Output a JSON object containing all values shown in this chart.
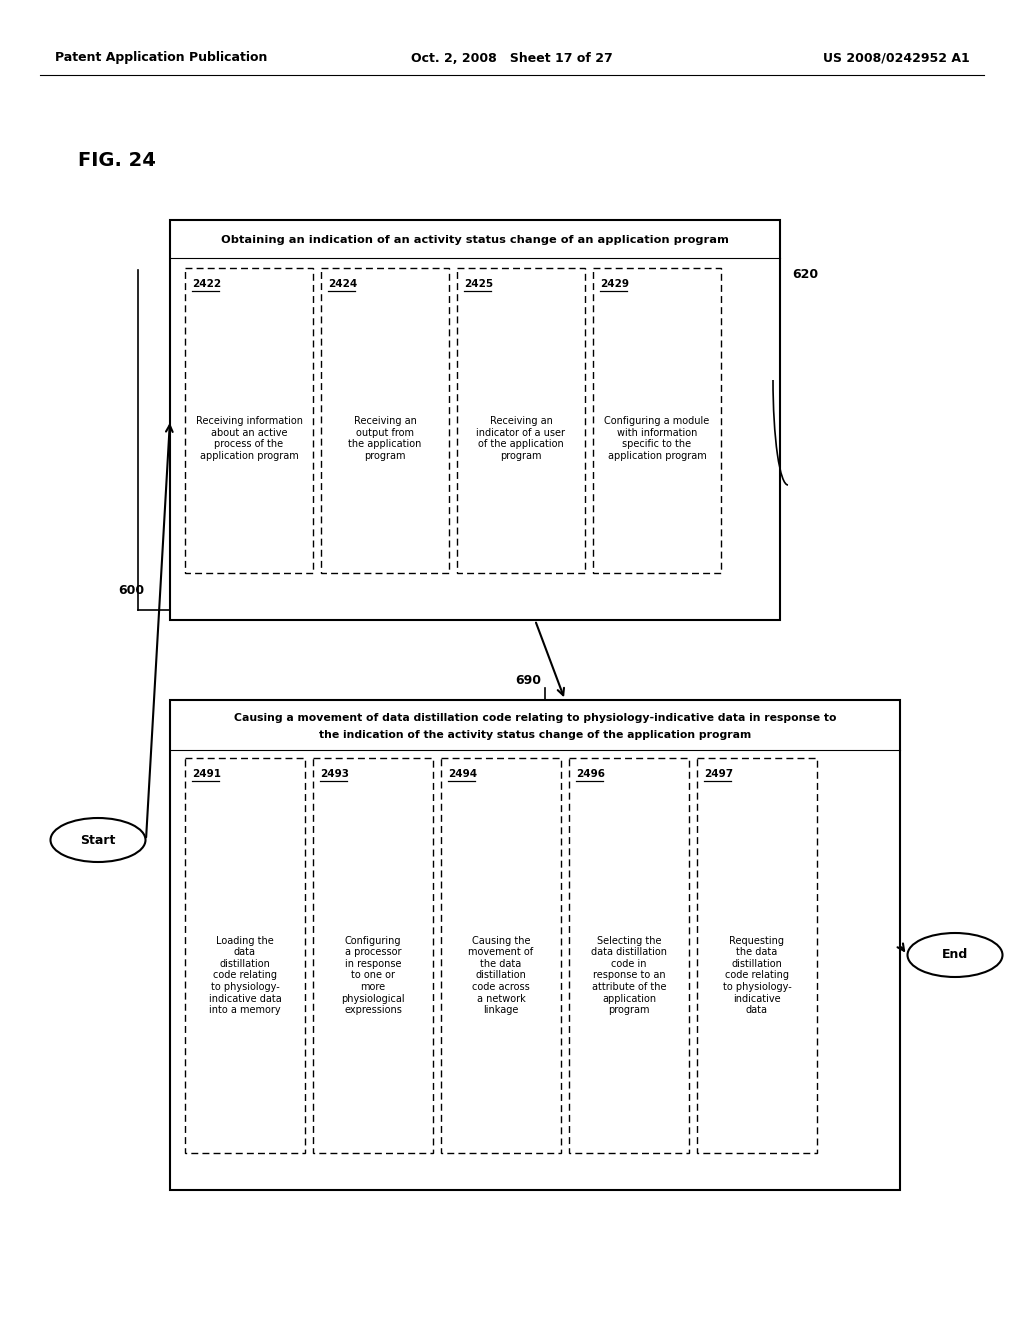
{
  "header_left": "Patent Application Publication",
  "header_center": "Oct. 2, 2008   Sheet 17 of 27",
  "header_right": "US 2008/0242952 A1",
  "fig_label": "FIG. 24",
  "bg_color": "#ffffff",
  "text_color": "#000000",
  "outer_box1_label": "Obtaining an indication of an activity status change of an application program",
  "outer_box1_ref": "600",
  "inner_ref1": "620",
  "box1_items": [
    {
      "ref": "2422",
      "text": "Receiving information\nabout an active\nprocess of the\napplication program"
    },
    {
      "ref": "2424",
      "text": "Receiving an\noutput from\nthe application\nprogram"
    },
    {
      "ref": "2425",
      "text": "Receiving an\nindicator of a user\nof the application\nprogram"
    },
    {
      "ref": "2429",
      "text": "Configuring a module\nwith information\nspecific to the\napplication program"
    }
  ],
  "outer_box2_line1": "Causing a movement of data distillation code relating to physiology-indicative data in response to",
  "outer_box2_line2": "the indication of the activity status change of the application program",
  "outer_box2_ref": "690",
  "box2_items": [
    {
      "ref": "2491",
      "text": "Loading the\ndata\ndistillation\ncode relating\nto physiology-\nindicative data\ninto a memory"
    },
    {
      "ref": "2493",
      "text": "Configuring\na processor\nin response\nto one or\nmore\nphysiological\nexpressions"
    },
    {
      "ref": "2494",
      "text": "Causing the\nmovement of\nthe data\ndistillation\ncode across\na network\nlinkage"
    },
    {
      "ref": "2496",
      "text": "Selecting the\ndata distillation\ncode in\nresponse to an\nattribute of the\napplication\nprogram"
    },
    {
      "ref": "2497",
      "text": "Requesting\nthe data\ndistillation\ncode relating\nto physiology-\nindicative\ndata"
    }
  ]
}
